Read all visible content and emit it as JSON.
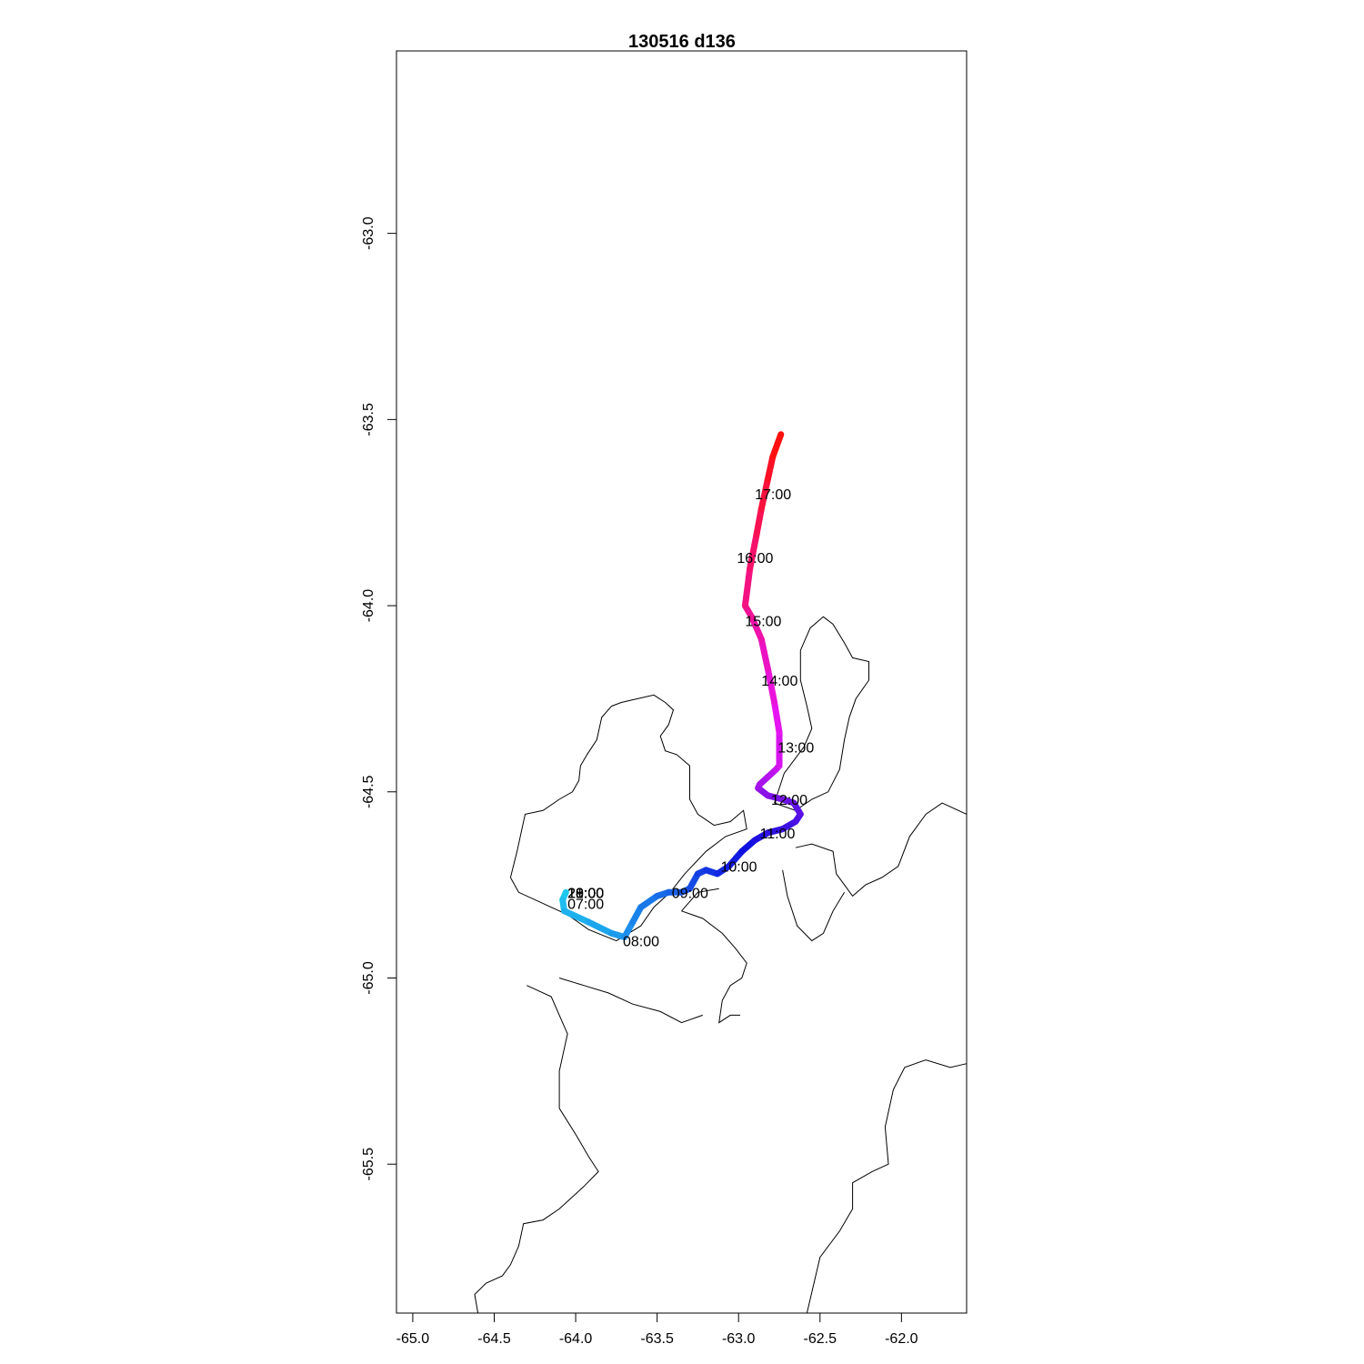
{
  "title": "130516   d136",
  "chart_data": {
    "type": "line",
    "title": "130516   d136",
    "xlabel": "",
    "ylabel": "",
    "xlim": [
      -65.1,
      -61.6
    ],
    "ylim": [
      -65.9,
      -62.51
    ],
    "x_ticks": [
      -65.0,
      -64.5,
      -64.0,
      -63.5,
      -63.0,
      -62.5,
      -62.0
    ],
    "x_tick_labels": [
      "-65.0",
      "-64.5",
      "-64.0",
      "-63.5",
      "-63.0",
      "-62.5",
      "-62.0"
    ],
    "y_ticks": [
      -63.0,
      -63.5,
      -64.0,
      -64.5,
      -65.0,
      -65.5
    ],
    "y_tick_labels": [
      "-63.0",
      "-63.5",
      "-64.0",
      "-64.5",
      "-65.0",
      "-65.5"
    ],
    "grid": false,
    "track": {
      "color_start": "#20c8f0",
      "color_mid": "#1010e0",
      "color_end": "#ff1010",
      "points": [
        [
          -64.06,
          -64.77
        ],
        [
          -64.08,
          -64.79
        ],
        [
          -64.07,
          -64.82
        ],
        [
          -63.92,
          -64.85
        ],
        [
          -63.78,
          -64.88
        ],
        [
          -63.7,
          -64.89
        ],
        [
          -63.65,
          -64.85
        ],
        [
          -63.6,
          -64.81
        ],
        [
          -63.5,
          -64.78
        ],
        [
          -63.43,
          -64.77
        ],
        [
          -63.35,
          -64.77
        ],
        [
          -63.3,
          -64.76
        ],
        [
          -63.25,
          -64.72
        ],
        [
          -63.2,
          -64.71
        ],
        [
          -63.13,
          -64.72
        ],
        [
          -63.06,
          -64.7
        ],
        [
          -62.98,
          -64.66
        ],
        [
          -62.9,
          -64.63
        ],
        [
          -62.82,
          -64.61
        ],
        [
          -62.73,
          -64.6
        ],
        [
          -62.65,
          -64.58
        ],
        [
          -62.62,
          -64.56
        ],
        [
          -62.66,
          -64.53
        ],
        [
          -62.73,
          -64.52
        ],
        [
          -62.82,
          -64.51
        ],
        [
          -62.88,
          -64.49
        ],
        [
          -62.87,
          -64.48
        ],
        [
          -62.82,
          -64.46
        ],
        [
          -62.77,
          -64.44
        ],
        [
          -62.75,
          -64.43
        ],
        [
          -62.75,
          -64.34
        ],
        [
          -62.78,
          -64.26
        ],
        [
          -62.82,
          -64.17
        ],
        [
          -62.86,
          -64.09
        ],
        [
          -62.92,
          -64.03
        ],
        [
          -62.96,
          -64.0
        ],
        [
          -62.93,
          -63.9
        ],
        [
          -62.89,
          -63.81
        ],
        [
          -62.86,
          -63.74
        ],
        [
          -62.82,
          -63.66
        ],
        [
          -62.79,
          -63.6
        ],
        [
          -62.74,
          -63.54
        ]
      ]
    },
    "time_labels": [
      {
        "text": "07:00",
        "x": -64.05,
        "y": -64.8
      },
      {
        "text": "08:00",
        "x": -63.71,
        "y": -64.9
      },
      {
        "text": "09:00",
        "x": -63.41,
        "y": -64.77
      },
      {
        "text": "10:00",
        "x": -63.11,
        "y": -64.7
      },
      {
        "text": "11:00",
        "x": -62.87,
        "y": -64.61
      },
      {
        "text": "12:00",
        "x": -62.8,
        "y": -64.52
      },
      {
        "text": "13:00",
        "x": -62.76,
        "y": -64.38
      },
      {
        "text": "14:00",
        "x": -62.86,
        "y": -64.2
      },
      {
        "text": "15:00",
        "x": -62.96,
        "y": -64.04
      },
      {
        "text": "16:00",
        "x": -63.01,
        "y": -63.87
      },
      {
        "text": "17:00",
        "x": -62.9,
        "y": -63.7
      },
      {
        "text": "18:00",
        "x": -64.05,
        "y": -64.77
      },
      {
        "text": "19:00",
        "x": -64.05,
        "y": -64.77
      },
      {
        "text": "20:00",
        "x": -64.05,
        "y": -64.77
      },
      {
        "text": "21:00",
        "x": -64.05,
        "y": -64.77
      }
    ],
    "coastlines": [
      [
        [
          -64.4,
          -64.73
        ],
        [
          -64.36,
          -64.66
        ],
        [
          -64.31,
          -64.56
        ],
        [
          -64.2,
          -64.55
        ],
        [
          -64.1,
          -64.52
        ],
        [
          -64.02,
          -64.5
        ],
        [
          -63.98,
          -64.47
        ],
        [
          -63.97,
          -64.43
        ],
        [
          -63.93,
          -64.4
        ],
        [
          -63.87,
          -64.36
        ],
        [
          -63.84,
          -64.3
        ],
        [
          -63.78,
          -64.27
        ],
        [
          -63.72,
          -64.26
        ],
        [
          -63.62,
          -64.25
        ],
        [
          -63.52,
          -64.24
        ],
        [
          -63.45,
          -64.26
        ],
        [
          -63.4,
          -64.28
        ],
        [
          -63.43,
          -64.32
        ],
        [
          -63.48,
          -64.35
        ],
        [
          -63.45,
          -64.39
        ],
        [
          -63.38,
          -64.4
        ],
        [
          -63.3,
          -64.43
        ],
        [
          -63.3,
          -64.52
        ],
        [
          -63.25,
          -64.56
        ],
        [
          -63.15,
          -64.59
        ],
        [
          -63.05,
          -64.58
        ],
        [
          -62.97,
          -64.55
        ],
        [
          -62.95,
          -64.6
        ],
        [
          -63.08,
          -64.62
        ],
        [
          -63.2,
          -64.66
        ],
        [
          -63.33,
          -64.72
        ],
        [
          -63.42,
          -64.77
        ],
        [
          -63.52,
          -64.81
        ],
        [
          -63.6,
          -64.86
        ],
        [
          -63.75,
          -64.9
        ],
        [
          -63.92,
          -64.87
        ],
        [
          -64.05,
          -64.83
        ],
        [
          -64.2,
          -64.8
        ],
        [
          -64.35,
          -64.77
        ],
        [
          -64.4,
          -64.73
        ]
      ],
      [
        [
          -62.78,
          -64.53
        ],
        [
          -62.72,
          -64.45
        ],
        [
          -62.6,
          -64.38
        ],
        [
          -62.55,
          -64.33
        ],
        [
          -62.58,
          -64.27
        ],
        [
          -62.62,
          -64.2
        ],
        [
          -62.62,
          -64.12
        ],
        [
          -62.56,
          -64.06
        ],
        [
          -62.48,
          -64.03
        ],
        [
          -62.42,
          -64.05
        ],
        [
          -62.35,
          -64.1
        ],
        [
          -62.3,
          -64.14
        ],
        [
          -62.2,
          -64.15
        ],
        [
          -62.2,
          -64.2
        ],
        [
          -62.28,
          -64.25
        ],
        [
          -62.32,
          -64.3
        ],
        [
          -62.35,
          -64.36
        ],
        [
          -62.38,
          -64.44
        ],
        [
          -62.45,
          -64.5
        ],
        [
          -62.55,
          -64.52
        ],
        [
          -62.65,
          -64.55
        ],
        [
          -62.78,
          -64.53
        ]
      ],
      [
        [
          -62.65,
          -64.65
        ],
        [
          -62.55,
          -64.64
        ],
        [
          -62.42,
          -64.66
        ],
        [
          -62.4,
          -64.72
        ],
        [
          -62.35,
          -64.75
        ],
        [
          -62.3,
          -64.78
        ],
        [
          -62.22,
          -64.75
        ],
        [
          -62.12,
          -64.73
        ],
        [
          -62.02,
          -64.7
        ],
        [
          -61.95,
          -64.62
        ],
        [
          -61.85,
          -64.56
        ],
        [
          -61.75,
          -64.53
        ],
        [
          -61.6,
          -64.56
        ]
      ],
      [
        [
          -62.73,
          -64.71
        ],
        [
          -62.7,
          -64.78
        ],
        [
          -62.64,
          -64.86
        ],
        [
          -62.55,
          -64.9
        ],
        [
          -62.48,
          -64.88
        ],
        [
          -62.42,
          -64.82
        ],
        [
          -62.35,
          -64.77
        ]
      ],
      [
        [
          -63.35,
          -64.82
        ],
        [
          -63.22,
          -64.84
        ],
        [
          -63.1,
          -64.88
        ],
        [
          -63.02,
          -64.92
        ],
        [
          -62.95,
          -64.96
        ],
        [
          -62.98,
          -65.0
        ],
        [
          -63.05,
          -65.02
        ],
        [
          -63.1,
          -65.06
        ],
        [
          -63.12,
          -65.12
        ],
        [
          -63.05,
          -65.1
        ],
        [
          -62.99,
          -65.1
        ]
      ],
      [
        [
          -63.35,
          -64.82
        ],
        [
          -63.25,
          -64.77
        ],
        [
          -63.12,
          -64.76
        ]
      ],
      [
        [
          -64.3,
          -65.02
        ],
        [
          -64.15,
          -65.05
        ],
        [
          -64.1,
          -65.1
        ],
        [
          -64.05,
          -65.15
        ],
        [
          -64.1,
          -65.25
        ],
        [
          -64.1,
          -65.35
        ],
        [
          -64.0,
          -65.42
        ],
        [
          -63.92,
          -65.48
        ],
        [
          -63.86,
          -65.52
        ],
        [
          -63.95,
          -65.56
        ],
        [
          -64.1,
          -65.62
        ],
        [
          -64.2,
          -65.65
        ],
        [
          -64.32,
          -65.66
        ],
        [
          -64.35,
          -65.72
        ],
        [
          -64.4,
          -65.77
        ],
        [
          -64.45,
          -65.8
        ],
        [
          -64.55,
          -65.82
        ],
        [
          -64.62,
          -65.85
        ],
        [
          -64.6,
          -65.9
        ]
      ],
      [
        [
          -64.1,
          -65.0
        ],
        [
          -63.95,
          -65.02
        ],
        [
          -63.8,
          -65.04
        ],
        [
          -63.65,
          -65.07
        ],
        [
          -63.48,
          -65.09
        ],
        [
          -63.35,
          -65.12
        ],
        [
          -63.22,
          -65.1
        ]
      ],
      [
        [
          -62.58,
          -65.9
        ],
        [
          -62.5,
          -65.75
        ],
        [
          -62.38,
          -65.68
        ],
        [
          -62.3,
          -65.62
        ],
        [
          -62.3,
          -65.55
        ],
        [
          -62.18,
          -65.52
        ],
        [
          -62.08,
          -65.5
        ],
        [
          -62.1,
          -65.4
        ],
        [
          -62.05,
          -65.3
        ],
        [
          -61.98,
          -65.24
        ],
        [
          -61.85,
          -65.22
        ],
        [
          -61.7,
          -65.24
        ],
        [
          -61.6,
          -65.23
        ]
      ]
    ]
  }
}
